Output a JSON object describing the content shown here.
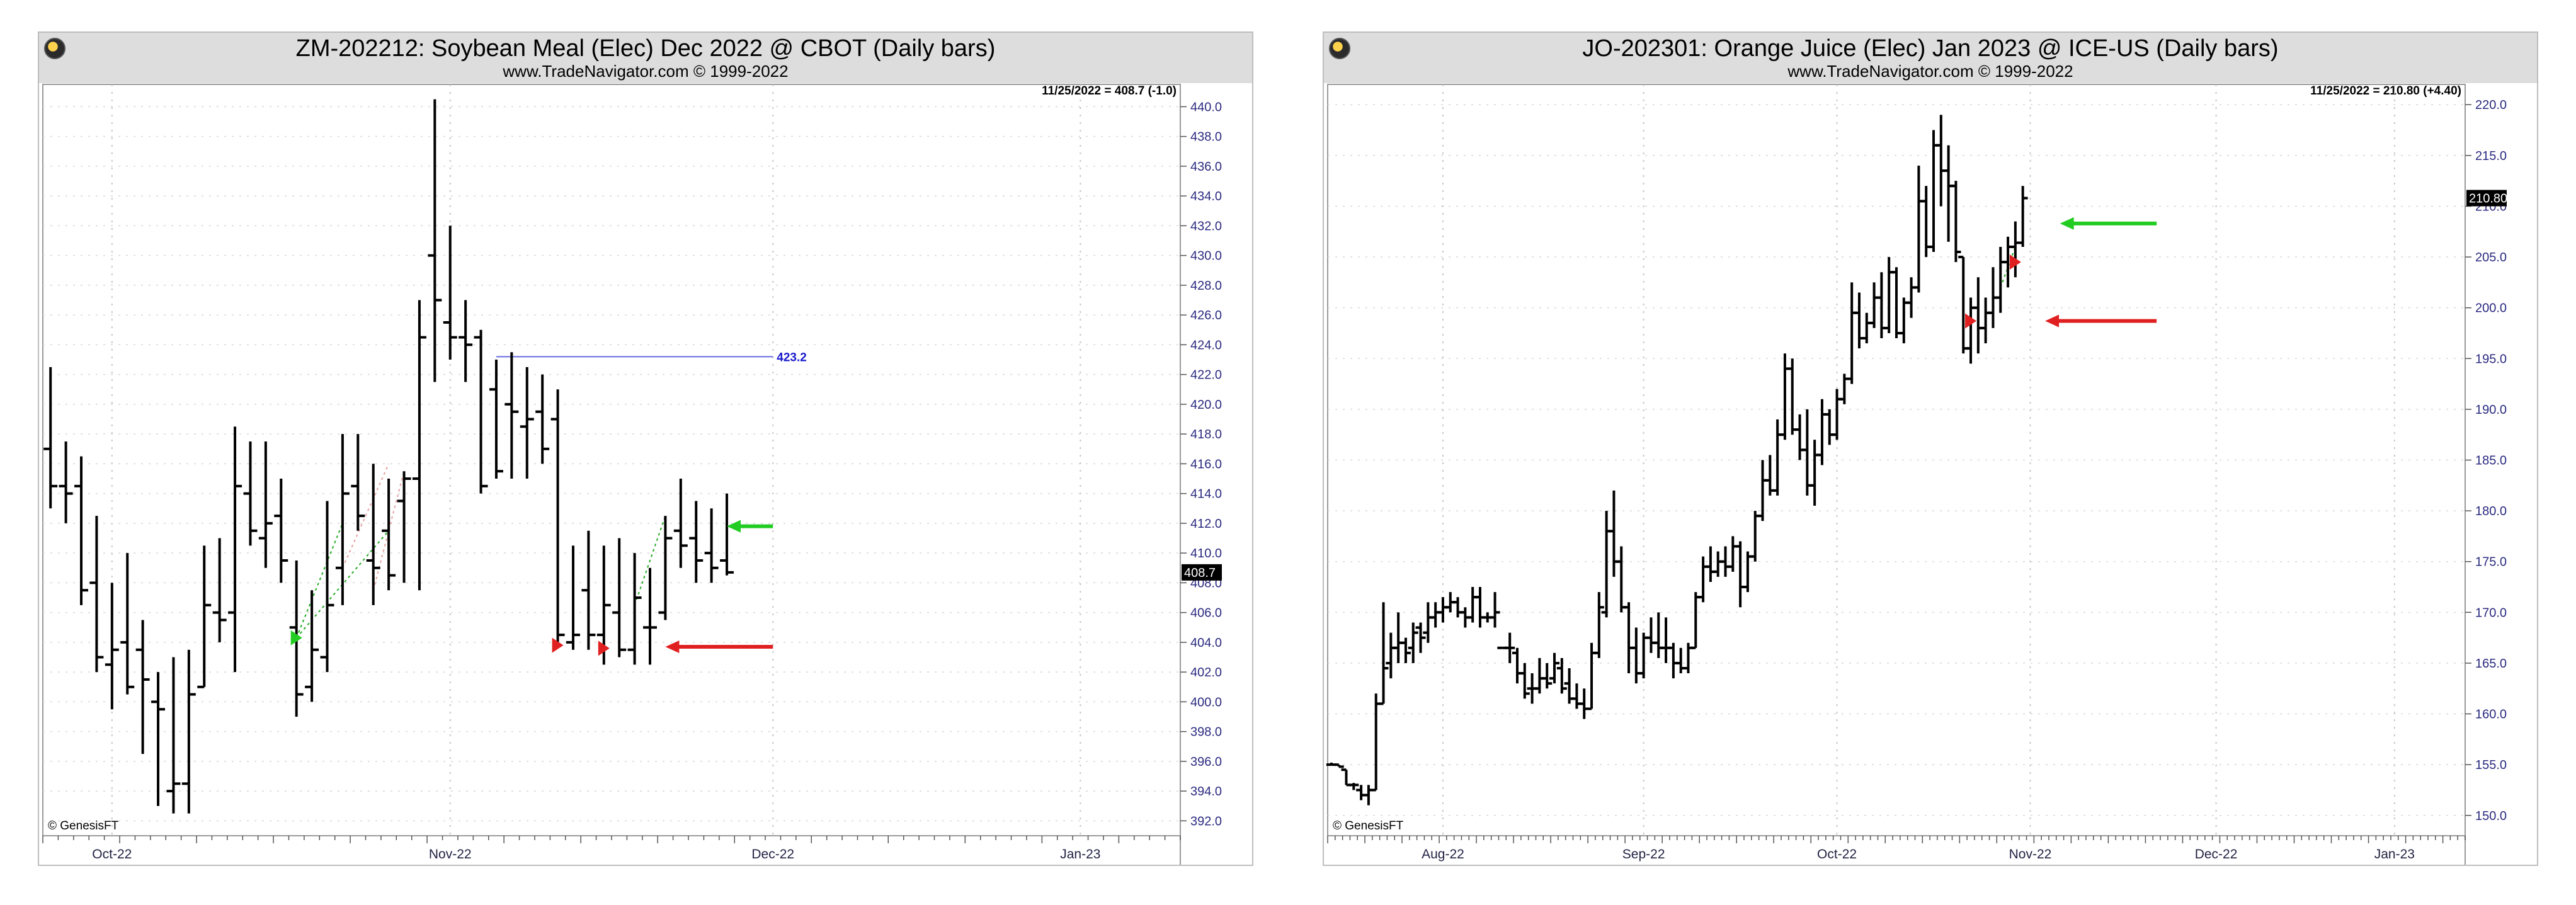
{
  "chart_data": [
    {
      "type": "ohlc",
      "title": "ZM-202212:  Soybean Meal (Elec) Dec 2022 @ CBOT  (Daily bars)",
      "subtitle": "www.TradeNavigator.com © 1999-2022",
      "readout": "11/25/2022 = 408.7 (-1.0)",
      "copyright": "© GenesisFT",
      "last_price_label": "408.7",
      "ylim": [
        391,
        441.5
      ],
      "y_ticks": [
        440.0,
        438.0,
        436.0,
        434.0,
        432.0,
        430.0,
        428.0,
        426.0,
        424.0,
        422.0,
        420.0,
        418.0,
        416.0,
        414.0,
        412.0,
        410.0,
        408.0,
        406.0,
        404.0,
        402.0,
        400.0,
        398.0,
        396.0,
        394.0,
        392.0
      ],
      "x_month_labels": [
        {
          "label": "Oct-22",
          "bar": 4
        },
        {
          "label": "Nov-22",
          "bar": 26
        },
        {
          "label": "Dec-22",
          "bar": 47
        },
        {
          "label": "Jan-23",
          "bar": 67
        }
      ],
      "bar_count": 74,
      "bars": [
        {
          "o": 417.0,
          "h": 422.5,
          "l": 413.0,
          "c": 414.5
        },
        {
          "o": 414.5,
          "h": 417.5,
          "l": 412.0,
          "c": 414.0
        },
        {
          "o": 414.5,
          "h": 416.5,
          "l": 406.5,
          "c": 407.5
        },
        {
          "o": 408.0,
          "h": 412.5,
          "l": 402.0,
          "c": 403.0
        },
        {
          "o": 402.5,
          "h": 408.0,
          "l": 399.5,
          "c": 403.5
        },
        {
          "o": 404.0,
          "h": 410.0,
          "l": 400.5,
          "c": 401.0
        },
        {
          "o": 403.5,
          "h": 405.5,
          "l": 396.5,
          "c": 401.5
        },
        {
          "o": 400.0,
          "h": 402.0,
          "l": 393.0,
          "c": 399.5
        },
        {
          "o": 394.0,
          "h": 403.0,
          "l": 392.5,
          "c": 394.5
        },
        {
          "o": 394.5,
          "h": 403.5,
          "l": 392.5,
          "c": 400.5
        },
        {
          "o": 401.0,
          "h": 410.5,
          "l": 401.0,
          "c": 406.5
        },
        {
          "o": 406.0,
          "h": 411.0,
          "l": 404.0,
          "c": 405.5
        },
        {
          "o": 406.0,
          "h": 418.5,
          "l": 402.0,
          "c": 414.5
        },
        {
          "o": 414.0,
          "h": 417.5,
          "l": 410.5,
          "c": 411.5
        },
        {
          "o": 411.0,
          "h": 417.5,
          "l": 409.0,
          "c": 412.0
        },
        {
          "o": 412.5,
          "h": 415.0,
          "l": 408.0,
          "c": 409.5
        },
        {
          "o": 405.0,
          "h": 409.5,
          "l": 399.0,
          "c": 400.5
        },
        {
          "o": 401.0,
          "h": 407.5,
          "l": 400.0,
          "c": 403.5
        },
        {
          "o": 403.0,
          "h": 413.5,
          "l": 402.0,
          "c": 406.5
        },
        {
          "o": 409.0,
          "h": 418.0,
          "l": 406.5,
          "c": 414.0
        },
        {
          "o": 414.5,
          "h": 418.0,
          "l": 411.5,
          "c": 412.5
        },
        {
          "o": 409.5,
          "h": 416.0,
          "l": 406.5,
          "c": 409.0
        },
        {
          "o": 411.5,
          "h": 415.0,
          "l": 407.5,
          "c": 408.5
        },
        {
          "o": 413.5,
          "h": 415.5,
          "l": 408.0,
          "c": 415.0
        },
        {
          "o": 415.0,
          "h": 427.0,
          "l": 407.5,
          "c": 424.5
        },
        {
          "o": 430.0,
          "h": 440.5,
          "l": 421.5,
          "c": 427.0
        },
        {
          "o": 425.5,
          "h": 432.0,
          "l": 423.0,
          "c": 424.5
        },
        {
          "o": 424.5,
          "h": 427.0,
          "l": 421.5,
          "c": 424.0
        },
        {
          "o": 424.5,
          "h": 425.0,
          "l": 414.0,
          "c": 414.5
        },
        {
          "o": 421.0,
          "h": 423.0,
          "l": 415.0,
          "c": 415.5
        },
        {
          "o": 420.0,
          "h": 423.5,
          "l": 415.0,
          "c": 419.5
        },
        {
          "o": 418.5,
          "h": 422.5,
          "l": 415.0,
          "c": 419.0
        },
        {
          "o": 419.5,
          "h": 422.0,
          "l": 416.0,
          "c": 417.0
        },
        {
          "o": 419.0,
          "h": 421.0,
          "l": 404.0,
          "c": 404.5
        },
        {
          "o": 404.0,
          "h": 410.5,
          "l": 403.5,
          "c": 404.5
        },
        {
          "o": 407.5,
          "h": 411.5,
          "l": 403.5,
          "c": 404.5
        },
        {
          "o": 404.5,
          "h": 410.5,
          "l": 402.5,
          "c": 406.5
        },
        {
          "o": 406.0,
          "h": 411.0,
          "l": 403.0,
          "c": 403.5
        },
        {
          "o": 403.5,
          "h": 410.0,
          "l": 402.5,
          "c": 407.0
        },
        {
          "o": 405.0,
          "h": 409.0,
          "l": 402.5,
          "c": 405.0
        },
        {
          "o": 406.0,
          "h": 412.5,
          "l": 405.5,
          "c": 411.0
        },
        {
          "o": 411.5,
          "h": 415.0,
          "l": 409.0,
          "c": 410.5
        },
        {
          "o": 411.0,
          "h": 413.5,
          "l": 408.0,
          "c": 409.5
        },
        {
          "o": 410.0,
          "h": 413.0,
          "l": 408.0,
          "c": 409.0
        },
        {
          "o": 409.5,
          "h": 414.0,
          "l": 408.5,
          "c": 408.7
        }
      ],
      "hline": {
        "value": 423.2,
        "label": "423.2",
        "from_bar": 29,
        "to_bar": 47
      },
      "arrows": [
        {
          "color": "#22cc22",
          "value": 411.8,
          "from_bar": 44,
          "to_bar": 47
        },
        {
          "color": "#e02020",
          "value": 403.7,
          "from_bar": 40,
          "to_bar": 47
        }
      ],
      "markers": [
        {
          "bar": 16,
          "value": 404.3,
          "color": "#22cc22",
          "dir": "right"
        },
        {
          "bar": 33,
          "value": 403.8,
          "color": "#e02020",
          "dir": "right"
        },
        {
          "bar": 36,
          "value": 403.6,
          "color": "#e02020",
          "dir": "right"
        }
      ],
      "dotted_lines": [
        {
          "color": "#22aa22",
          "from": [
            16,
            404.3
          ],
          "to": [
            19,
            412.0
          ]
        },
        {
          "color": "#22aa22",
          "from": [
            16,
            404.3
          ],
          "to": [
            22,
            411.5
          ]
        },
        {
          "color": "#e8a0a0",
          "from": [
            19,
            409.0
          ],
          "to": [
            22,
            416.0
          ]
        },
        {
          "color": "#e8a0a0",
          "from": [
            21,
            407.5
          ],
          "to": [
            23,
            415.5
          ]
        },
        {
          "color": "#22aa22",
          "from": [
            38,
            406.5
          ],
          "to": [
            40,
            412.5
          ]
        }
      ]
    },
    {
      "type": "ohlc",
      "title": "JO-202301:  Orange Juice (Elec) Jan 2023 @ ICE-US  (Daily bars)",
      "subtitle": "www.TradeNavigator.com © 1999-2022",
      "readout": "11/25/2022 = 210.80 (+4.40)",
      "copyright": "© GenesisFT",
      "last_price_label": "210.80",
      "ylim": [
        148,
        222
      ],
      "y_ticks": [
        220.0,
        215.0,
        210.0,
        205.0,
        200.0,
        195.0,
        190.0,
        185.0,
        180.0,
        175.0,
        170.0,
        165.0,
        160.0,
        155.0,
        150.0
      ],
      "x_month_labels": [
        {
          "label": "Aug-22",
          "bar": 15
        },
        {
          "label": "Sep-22",
          "bar": 42
        },
        {
          "label": "Oct-22",
          "bar": 68
        },
        {
          "label": "Nov-22",
          "bar": 94
        },
        {
          "label": "Dec-22",
          "bar": 119
        },
        {
          "label": "Jan-23",
          "bar": 143
        }
      ],
      "bar_count": 153,
      "bars": [
        {
          "o": 155.0,
          "h": 155.2,
          "l": 155.0,
          "c": 155.0
        },
        {
          "o": 155.0,
          "h": 155.0,
          "l": 154.8,
          "c": 154.8
        },
        {
          "o": 154.5,
          "h": 154.5,
          "l": 153.0,
          "c": 153.0
        },
        {
          "o": 153.0,
          "h": 153.2,
          "l": 152.5,
          "c": 153.0
        },
        {
          "o": 152.5,
          "h": 153.0,
          "l": 151.5,
          "c": 152.0
        },
        {
          "o": 152.0,
          "h": 153.0,
          "l": 151.0,
          "c": 152.5
        },
        {
          "o": 152.5,
          "h": 162.0,
          "l": 152.5,
          "c": 161.0
        },
        {
          "o": 161.0,
          "h": 171.0,
          "l": 161.0,
          "c": 164.5
        },
        {
          "o": 165.0,
          "h": 168.0,
          "l": 163.5,
          "c": 166.5
        },
        {
          "o": 166.5,
          "h": 170.0,
          "l": 165.0,
          "c": 167.0
        },
        {
          "o": 167.0,
          "h": 167.5,
          "l": 165.0,
          "c": 166.0
        },
        {
          "o": 166.5,
          "h": 169.0,
          "l": 165.0,
          "c": 168.0
        },
        {
          "o": 168.5,
          "h": 169.0,
          "l": 166.0,
          "c": 167.5
        },
        {
          "o": 168.0,
          "h": 171.0,
          "l": 167.0,
          "c": 169.5
        },
        {
          "o": 169.5,
          "h": 171.0,
          "l": 168.5,
          "c": 170.0
        },
        {
          "o": 170.0,
          "h": 171.5,
          "l": 169.0,
          "c": 170.5
        },
        {
          "o": 170.5,
          "h": 172.0,
          "l": 170.0,
          "c": 171.0
        },
        {
          "o": 171.0,
          "h": 171.5,
          "l": 169.5,
          "c": 170.0
        },
        {
          "o": 170.0,
          "h": 170.5,
          "l": 168.5,
          "c": 169.5
        },
        {
          "o": 169.5,
          "h": 172.5,
          "l": 169.0,
          "c": 171.5
        },
        {
          "o": 171.5,
          "h": 172.5,
          "l": 168.5,
          "c": 169.5
        },
        {
          "o": 169.5,
          "h": 170.0,
          "l": 169.0,
          "c": 169.5
        },
        {
          "o": 169.5,
          "h": 172.0,
          "l": 168.5,
          "c": 170.0
        },
        {
          "o": 166.5,
          "h": 166.5,
          "l": 166.5,
          "c": 166.5
        },
        {
          "o": 166.5,
          "h": 168.0,
          "l": 165.0,
          "c": 166.5
        },
        {
          "o": 166.0,
          "h": 166.5,
          "l": 163.0,
          "c": 164.0
        },
        {
          "o": 164.0,
          "h": 165.0,
          "l": 161.5,
          "c": 162.0
        },
        {
          "o": 162.5,
          "h": 164.0,
          "l": 161.0,
          "c": 162.5
        },
        {
          "o": 162.5,
          "h": 165.5,
          "l": 162.0,
          "c": 163.5
        },
        {
          "o": 163.5,
          "h": 165.0,
          "l": 162.5,
          "c": 163.0
        },
        {
          "o": 163.5,
          "h": 166.0,
          "l": 163.0,
          "c": 165.0
        },
        {
          "o": 164.5,
          "h": 165.5,
          "l": 162.0,
          "c": 162.5
        },
        {
          "o": 163.0,
          "h": 164.5,
          "l": 161.0,
          "c": 161.5
        },
        {
          "o": 161.5,
          "h": 163.0,
          "l": 160.5,
          "c": 161.0
        },
        {
          "o": 161.0,
          "h": 162.5,
          "l": 159.5,
          "c": 160.5
        },
        {
          "o": 160.5,
          "h": 167.0,
          "l": 160.5,
          "c": 166.0
        },
        {
          "o": 166.0,
          "h": 172.0,
          "l": 165.5,
          "c": 170.5
        },
        {
          "o": 170.0,
          "h": 180.0,
          "l": 169.5,
          "c": 178.0
        },
        {
          "o": 178.0,
          "h": 182.0,
          "l": 173.5,
          "c": 175.0
        },
        {
          "o": 175.0,
          "h": 176.5,
          "l": 170.0,
          "c": 170.5
        },
        {
          "o": 170.5,
          "h": 171.0,
          "l": 164.0,
          "c": 166.5
        },
        {
          "o": 166.5,
          "h": 168.5,
          "l": 163.0,
          "c": 164.0
        },
        {
          "o": 164.0,
          "h": 168.0,
          "l": 163.5,
          "c": 167.5
        },
        {
          "o": 167.5,
          "h": 169.5,
          "l": 166.0,
          "c": 167.0
        },
        {
          "o": 167.0,
          "h": 170.0,
          "l": 165.5,
          "c": 166.5
        },
        {
          "o": 166.5,
          "h": 169.5,
          "l": 165.0,
          "c": 166.5
        },
        {
          "o": 166.5,
          "h": 167.0,
          "l": 163.5,
          "c": 165.0
        },
        {
          "o": 165.0,
          "h": 166.5,
          "l": 164.0,
          "c": 164.5
        },
        {
          "o": 164.5,
          "h": 167.0,
          "l": 164.0,
          "c": 166.5
        },
        {
          "o": 166.5,
          "h": 172.0,
          "l": 166.5,
          "c": 171.5
        },
        {
          "o": 171.5,
          "h": 175.5,
          "l": 171.0,
          "c": 174.5
        },
        {
          "o": 174.5,
          "h": 176.5,
          "l": 173.0,
          "c": 174.0
        },
        {
          "o": 174.0,
          "h": 176.0,
          "l": 173.5,
          "c": 175.0
        },
        {
          "o": 175.0,
          "h": 176.5,
          "l": 173.5,
          "c": 174.5
        },
        {
          "o": 174.5,
          "h": 177.5,
          "l": 174.0,
          "c": 176.5
        },
        {
          "o": 176.5,
          "h": 177.0,
          "l": 170.5,
          "c": 172.5
        },
        {
          "o": 172.5,
          "h": 176.0,
          "l": 172.0,
          "c": 175.5
        },
        {
          "o": 175.5,
          "h": 180.0,
          "l": 175.0,
          "c": 179.5
        },
        {
          "o": 179.5,
          "h": 185.0,
          "l": 179.0,
          "c": 183.0
        },
        {
          "o": 183.0,
          "h": 185.5,
          "l": 181.5,
          "c": 182.0
        },
        {
          "o": 182.0,
          "h": 189.0,
          "l": 181.5,
          "c": 187.5
        },
        {
          "o": 187.5,
          "h": 195.5,
          "l": 187.0,
          "c": 194.0
        },
        {
          "o": 194.0,
          "h": 195.0,
          "l": 187.5,
          "c": 188.0
        },
        {
          "o": 188.0,
          "h": 189.5,
          "l": 185.0,
          "c": 186.0
        },
        {
          "o": 186.0,
          "h": 190.0,
          "l": 181.5,
          "c": 182.5
        },
        {
          "o": 182.5,
          "h": 187.0,
          "l": 180.5,
          "c": 185.5
        },
        {
          "o": 185.5,
          "h": 191.0,
          "l": 184.5,
          "c": 189.5
        },
        {
          "o": 189.5,
          "h": 190.0,
          "l": 186.5,
          "c": 187.5
        },
        {
          "o": 187.5,
          "h": 192.0,
          "l": 187.0,
          "c": 191.0
        },
        {
          "o": 191.0,
          "h": 193.5,
          "l": 190.5,
          "c": 193.0
        },
        {
          "o": 193.0,
          "h": 202.5,
          "l": 192.5,
          "c": 199.5
        },
        {
          "o": 199.5,
          "h": 201.5,
          "l": 196.0,
          "c": 197.0
        },
        {
          "o": 197.0,
          "h": 199.5,
          "l": 196.5,
          "c": 198.5
        },
        {
          "o": 198.5,
          "h": 202.5,
          "l": 198.0,
          "c": 201.0
        },
        {
          "o": 201.0,
          "h": 203.5,
          "l": 197.0,
          "c": 198.0
        },
        {
          "o": 198.0,
          "h": 205.0,
          "l": 197.5,
          "c": 203.5
        },
        {
          "o": 203.5,
          "h": 204.0,
          "l": 197.0,
          "c": 197.5
        },
        {
          "o": 197.5,
          "h": 201.0,
          "l": 196.5,
          "c": 200.5
        },
        {
          "o": 200.5,
          "h": 203.0,
          "l": 199.0,
          "c": 202.0
        },
        {
          "o": 202.0,
          "h": 214.0,
          "l": 201.5,
          "c": 210.5
        },
        {
          "o": 210.5,
          "h": 212.0,
          "l": 205.0,
          "c": 206.0
        },
        {
          "o": 206.0,
          "h": 217.5,
          "l": 205.5,
          "c": 216.0
        },
        {
          "o": 216.0,
          "h": 219.0,
          "l": 210.0,
          "c": 213.5
        },
        {
          "o": 213.5,
          "h": 216.0,
          "l": 206.5,
          "c": 212.0
        },
        {
          "o": 212.0,
          "h": 212.5,
          "l": 204.5,
          "c": 205.5
        },
        {
          "o": 205.0,
          "h": 205.0,
          "l": 195.5,
          "c": 196.0
        },
        {
          "o": 196.0,
          "h": 201.0,
          "l": 194.5,
          "c": 200.0
        },
        {
          "o": 200.0,
          "h": 203.0,
          "l": 195.5,
          "c": 198.0
        },
        {
          "o": 198.0,
          "h": 201.0,
          "l": 196.5,
          "c": 199.5
        },
        {
          "o": 199.5,
          "h": 204.0,
          "l": 198.0,
          "c": 201.0
        },
        {
          "o": 201.0,
          "h": 206.0,
          "l": 199.5,
          "c": 204.5
        },
        {
          "o": 204.5,
          "h": 207.0,
          "l": 202.0,
          "c": 206.0
        },
        {
          "o": 206.0,
          "h": 208.5,
          "l": 203.0,
          "c": 206.4
        },
        {
          "o": 206.4,
          "h": 212.0,
          "l": 206.0,
          "c": 210.8
        }
      ],
      "arrows": [
        {
          "color": "#22cc22",
          "value": 208.3,
          "from_bar": 98,
          "to_bar": 111
        },
        {
          "color": "#e02020",
          "value": 198.7,
          "from_bar": 96,
          "to_bar": 111
        }
      ],
      "markers": [
        {
          "bar": 86,
          "value": 198.7,
          "color": "#e02020",
          "dir": "right"
        },
        {
          "bar": 92,
          "value": 204.5,
          "color": "#e02020",
          "dir": "right"
        }
      ],
      "dotted_lines": [
        {
          "color": "#22aa22",
          "from": [
            90,
            202.0
          ],
          "to": [
            92,
            206.0
          ]
        }
      ]
    }
  ]
}
